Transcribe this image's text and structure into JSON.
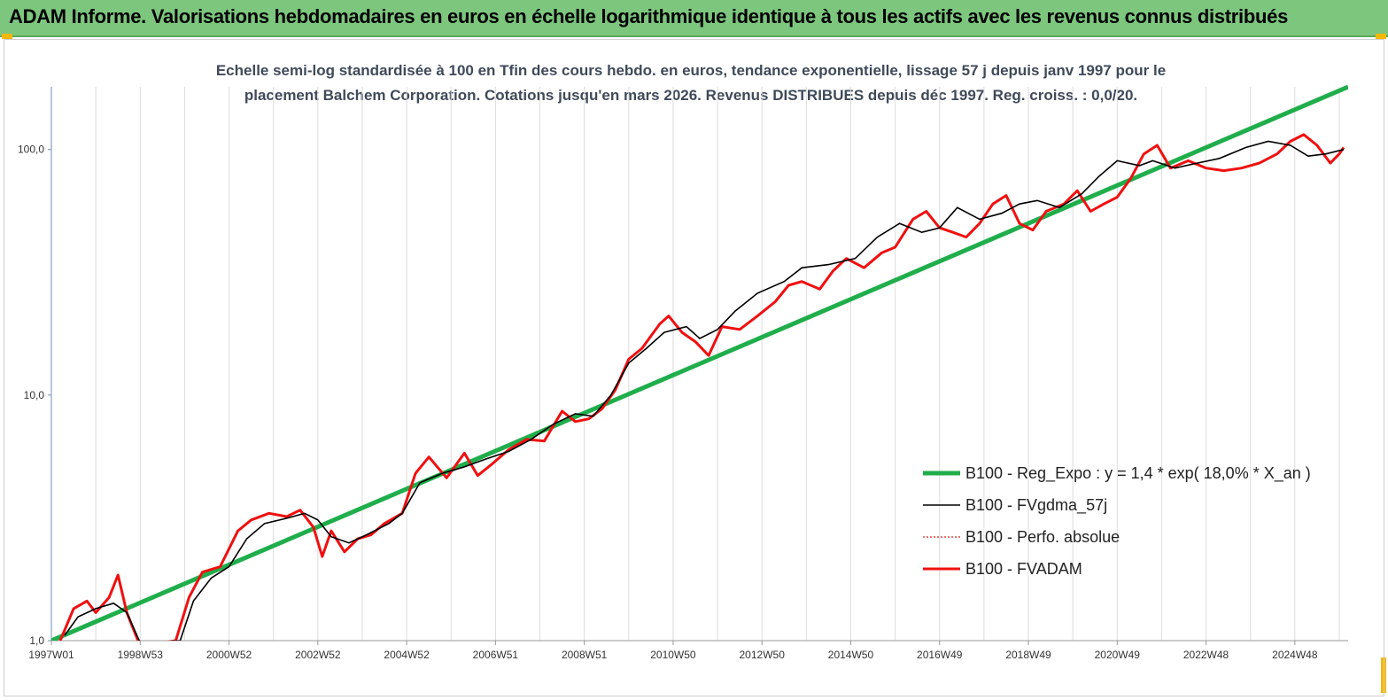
{
  "header": {
    "title": "ADAM Informe. Valorisations hebdomadaires en euros en échelle logarithmique identique à tous les actifs avec les revenus connus distribués"
  },
  "colors": {
    "header_bg": "#7dc67e",
    "regression": "#1fae4b",
    "gdma": "#000000",
    "perfo": "#e0201b",
    "fvadam": "#f01010"
  },
  "chart_data": {
    "type": "line",
    "subtitle_line1": "Echelle semi-log standardisée à 100 en Tfin des cours hebdo. en euros, tendance exponentielle, lissage 57 j depuis janv 1997 pour le",
    "subtitle_line2": "placement Balchem Corporation. Cotations jusqu'en mars 2026. Revenus DISTRIBUES depuis déc 1997. Reg. croiss. : 0,0/20.",
    "y_scale": "log",
    "ylim": [
      1,
      180
    ],
    "y_ticks": [
      {
        "value": 1,
        "label": "1,0"
      },
      {
        "value": 10,
        "label": "10,0"
      },
      {
        "value": 100,
        "label": "100,0"
      }
    ],
    "xlim": [
      1997.0,
      2026.2
    ],
    "x_ticks": [
      {
        "value": 1997.0,
        "label": "1997W01"
      },
      {
        "value": 1999.0,
        "label": "1998W53"
      },
      {
        "value": 2001.0,
        "label": "2000W52"
      },
      {
        "value": 2003.0,
        "label": "2002W52"
      },
      {
        "value": 2005.0,
        "label": "2004W52"
      },
      {
        "value": 2007.0,
        "label": "2006W51"
      },
      {
        "value": 2009.0,
        "label": "2008W51"
      },
      {
        "value": 2011.0,
        "label": "2010W50"
      },
      {
        "value": 2013.0,
        "label": "2012W50"
      },
      {
        "value": 2015.0,
        "label": "2014W50"
      },
      {
        "value": 2017.0,
        "label": "2016W49"
      },
      {
        "value": 2019.0,
        "label": "2018W49"
      },
      {
        "value": 2021.0,
        "label": "2020W49"
      },
      {
        "value": 2023.0,
        "label": "2022W48"
      },
      {
        "value": 2025.0,
        "label": "2024W48"
      }
    ],
    "grid": "vertical",
    "legend_position": "bottom-right",
    "series": [
      {
        "name": "B100 - Reg_Expo : y = 1,4 * exp( 18,0% *  X_an )",
        "style": "thick",
        "x": [
          1997.0,
          2026.2
        ],
        "y": [
          1.0,
          180
        ]
      },
      {
        "name": "B100 - FVgdma_57j",
        "style": "thin",
        "x": [
          1997.3,
          1997.6,
          1998.0,
          1998.4,
          1998.7,
          1999.0,
          1999.9,
          2000.2,
          2000.6,
          2001.0,
          2001.4,
          2001.8,
          2002.3,
          2002.7,
          2003.0,
          2003.3,
          2003.7,
          2004.1,
          2004.6,
          2004.9,
          2005.3,
          2005.8,
          2006.3,
          2006.8,
          2007.3,
          2007.8,
          2008.3,
          2008.8,
          2009.2,
          2009.6,
          2010.0,
          2010.4,
          2010.8,
          2011.3,
          2011.6,
          2012.0,
          2012.4,
          2012.9,
          2013.5,
          2013.9,
          2014.5,
          2015.1,
          2015.6,
          2016.1,
          2016.6,
          2017.0,
          2017.4,
          2017.9,
          2018.4,
          2018.8,
          2019.2,
          2019.7,
          2020.2,
          2020.6,
          2021.0,
          2021.5,
          2021.8,
          2022.3,
          2022.8,
          2023.3,
          2023.9,
          2024.4,
          2024.9,
          2025.3,
          2025.7,
          2026.1
        ],
        "y": [
          1.05,
          1.25,
          1.35,
          1.42,
          1.3,
          0.98,
          1.0,
          1.45,
          1.8,
          2.0,
          2.6,
          3.0,
          3.15,
          3.3,
          3.1,
          2.65,
          2.5,
          2.7,
          3.0,
          3.3,
          4.4,
          4.8,
          5.1,
          5.5,
          5.9,
          6.6,
          7.6,
          8.4,
          8.2,
          10.0,
          13.5,
          15.5,
          18.0,
          19.0,
          17.0,
          18.5,
          22.0,
          26.0,
          29.0,
          33.0,
          34.0,
          36.0,
          44.0,
          50.0,
          46.0,
          48.0,
          58.0,
          52.0,
          55.0,
          60.0,
          62.0,
          58.0,
          66.0,
          78.0,
          90.0,
          86.0,
          90.0,
          84.0,
          88.0,
          92.0,
          102.0,
          108.0,
          104.0,
          94.0,
          96.0,
          100.0
        ]
      },
      {
        "name": "B100 - Perfo. absolue",
        "style": "dotted",
        "x": [
          1997.3,
          1997.6,
          1998.0,
          1998.4,
          1998.7,
          1999.0,
          1999.9,
          2000.2,
          2000.6,
          2001.0,
          2001.4,
          2001.8,
          2002.3,
          2002.7,
          2003.0,
          2003.3,
          2003.7,
          2004.1,
          2004.6,
          2004.9,
          2005.3,
          2005.8,
          2006.3,
          2006.8,
          2007.3,
          2007.8,
          2008.3,
          2008.8,
          2009.2,
          2009.6,
          2010.0,
          2010.4,
          2010.8,
          2011.3,
          2011.6,
          2012.0,
          2012.4,
          2012.9,
          2013.5,
          2013.9,
          2014.5,
          2015.1,
          2015.6,
          2016.1,
          2016.6,
          2017.0,
          2017.4,
          2017.9,
          2018.4,
          2018.8,
          2019.2,
          2019.7,
          2020.2,
          2020.6,
          2021.0,
          2021.5,
          2021.8,
          2022.3,
          2022.8,
          2023.3,
          2023.9,
          2024.4,
          2024.9,
          2025.3,
          2025.7,
          2026.1
        ],
        "y": [
          1.05,
          1.25,
          1.35,
          1.42,
          1.3,
          0.98,
          1.0,
          1.45,
          1.8,
          2.0,
          2.6,
          3.0,
          3.15,
          3.3,
          3.1,
          2.65,
          2.5,
          2.7,
          3.0,
          3.3,
          4.4,
          4.8,
          5.1,
          5.5,
          5.9,
          6.6,
          7.6,
          8.4,
          8.2,
          10.0,
          13.5,
          15.5,
          18.0,
          19.0,
          17.0,
          18.5,
          22.0,
          26.0,
          29.0,
          33.0,
          34.0,
          36.0,
          44.0,
          50.0,
          46.0,
          48.0,
          58.0,
          52.0,
          55.0,
          60.0,
          62.0,
          58.0,
          66.0,
          78.0,
          90.0,
          86.0,
          90.0,
          84.0,
          88.0,
          92.0,
          102.0,
          108.0,
          104.0,
          94.0,
          96.0,
          100.0
        ]
      },
      {
        "name": "B100 - FVADAM",
        "style": "thick",
        "x": [
          1997.2,
          1997.5,
          1997.8,
          1998.0,
          1998.3,
          1998.5,
          1998.7,
          1999.0,
          1999.8,
          2000.1,
          2000.4,
          2000.8,
          2001.2,
          2001.5,
          2001.9,
          2002.3,
          2002.6,
          2002.9,
          2003.1,
          2003.3,
          2003.6,
          2003.9,
          2004.2,
          2004.5,
          2004.9,
          2005.2,
          2005.5,
          2005.9,
          2006.3,
          2006.6,
          2006.9,
          2007.3,
          2007.7,
          2008.1,
          2008.5,
          2008.8,
          2009.1,
          2009.4,
          2009.7,
          2010.0,
          2010.3,
          2010.7,
          2010.9,
          2011.2,
          2011.5,
          2011.8,
          2012.1,
          2012.5,
          2012.9,
          2013.3,
          2013.6,
          2013.9,
          2014.3,
          2014.6,
          2014.9,
          2015.3,
          2015.7,
          2016.0,
          2016.4,
          2016.7,
          2017.0,
          2017.3,
          2017.6,
          2017.9,
          2018.2,
          2018.5,
          2018.8,
          2019.1,
          2019.4,
          2019.8,
          2020.1,
          2020.4,
          2020.7,
          2021.0,
          2021.3,
          2021.6,
          2021.9,
          2022.2,
          2022.6,
          2023.0,
          2023.4,
          2023.8,
          2024.2,
          2024.6,
          2024.9,
          2025.2,
          2025.5,
          2025.8,
          2026.0,
          2026.1
        ],
        "y": [
          1.0,
          1.35,
          1.45,
          1.3,
          1.5,
          1.85,
          1.3,
          0.95,
          1.0,
          1.5,
          1.9,
          2.0,
          2.8,
          3.1,
          3.3,
          3.2,
          3.4,
          2.9,
          2.2,
          2.8,
          2.3,
          2.6,
          2.7,
          3.0,
          3.3,
          4.8,
          5.6,
          4.6,
          5.8,
          4.7,
          5.2,
          6.0,
          6.6,
          6.5,
          8.6,
          7.8,
          8.0,
          8.8,
          10.5,
          14.0,
          15.5,
          19.5,
          21.0,
          18.0,
          16.5,
          14.5,
          19.0,
          18.5,
          21.0,
          24.0,
          28.0,
          29.0,
          27.0,
          32.0,
          36.0,
          33.0,
          38.0,
          40.0,
          52.0,
          56.0,
          48.0,
          46.0,
          44.0,
          50.0,
          60.0,
          65.0,
          50.0,
          47.0,
          56.0,
          60.0,
          68.0,
          56.0,
          60.0,
          64.0,
          76.0,
          96.0,
          104.0,
          84.0,
          90.0,
          84.0,
          82.0,
          84.0,
          88.0,
          96.0,
          108.0,
          115.0,
          104.0,
          88.0,
          96.0,
          102.0
        ]
      }
    ]
  }
}
